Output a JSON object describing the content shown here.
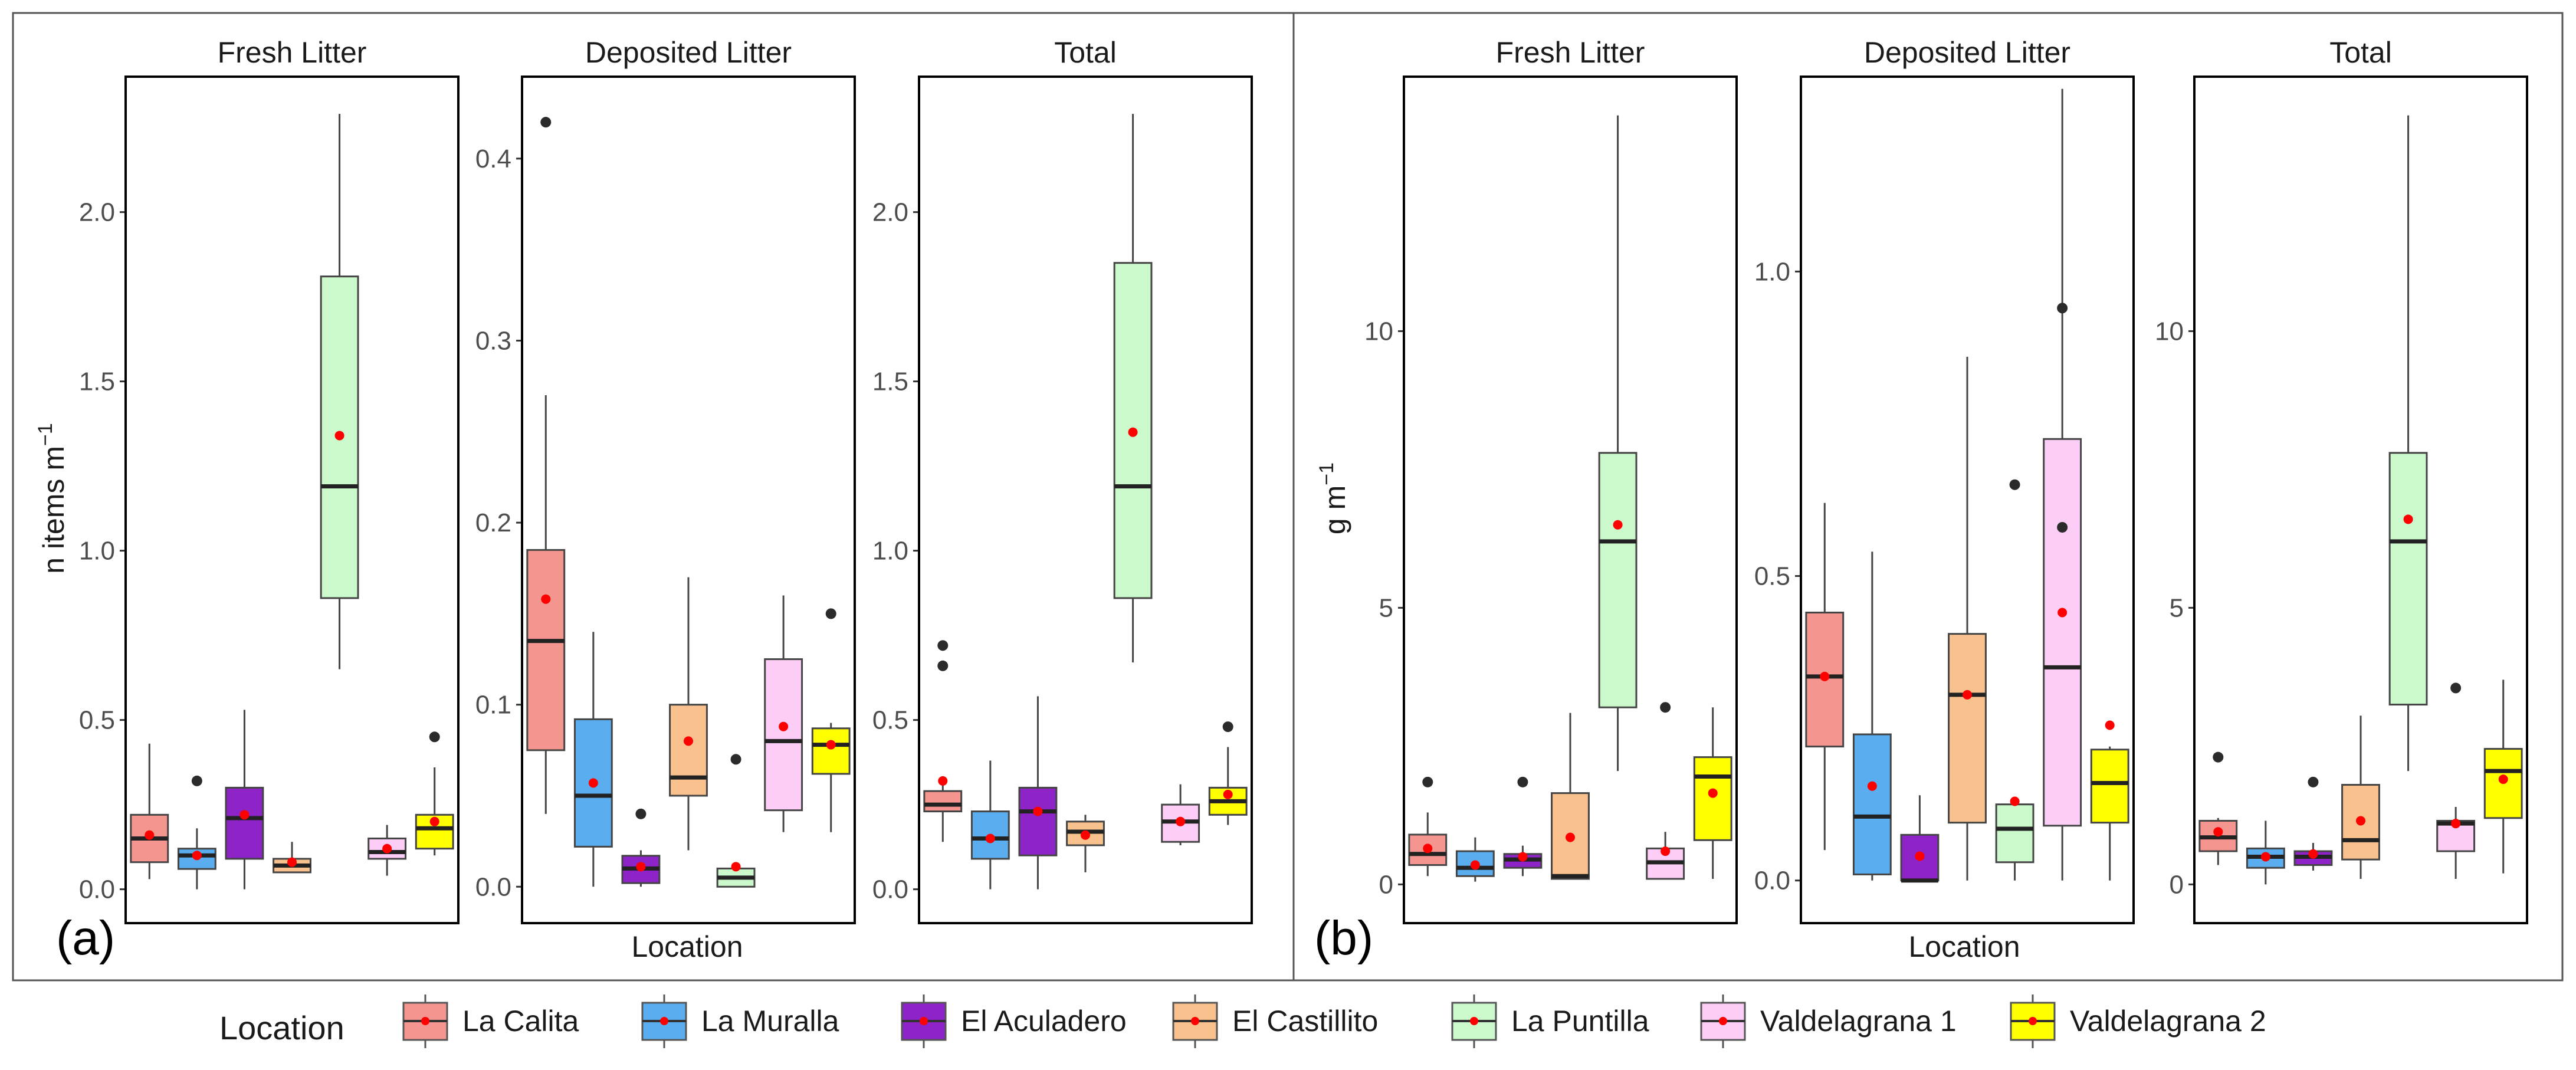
{
  "figures": [
    {
      "label": "(a)",
      "ylabel": "n items m",
      "ylabel_sup": "−1",
      "xlabel": "Location"
    },
    {
      "label": "(b)",
      "ylabel": "g m",
      "ylabel_sup": "−1",
      "xlabel": "Location"
    }
  ],
  "legend": {
    "title": "Location",
    "items": [
      {
        "label": "La Calita",
        "color": "#F4958F"
      },
      {
        "label": "La Muralla",
        "color": "#5AAEF0"
      },
      {
        "label": "El Aculadero",
        "color": "#8E23C8"
      },
      {
        "label": "El Castillito",
        "color": "#F9C18D"
      },
      {
        "label": "La Puntilla",
        "color": "#CCF9CC"
      },
      {
        "label": "Valdelagrana 1",
        "color": "#FCCDF6"
      },
      {
        "label": "Valdelagrana 2",
        "color": "#FFFF00"
      }
    ]
  },
  "colors": {
    "median": "#222222",
    "whisker": "#444444",
    "mean_point": "#FF0000",
    "outlier": "#2b2b2b",
    "panel_border": "#000000",
    "outer_frame": "#555555"
  },
  "chart_data": [
    {
      "type": "boxplot",
      "figure": 0,
      "title": "Fresh Litter",
      "ylim": [
        -0.1,
        2.4
      ],
      "yticks": [
        0.0,
        0.5,
        1.0,
        1.5,
        2.0
      ],
      "ytick_labels": [
        "0.0",
        "0.5",
        "1.0",
        "1.5",
        "2.0"
      ],
      "categories": [
        "La Calita",
        "La Muralla",
        "El Aculadero",
        "El Castillito",
        "La Puntilla",
        "Valdelagrana 1",
        "Valdelagrana 2"
      ],
      "boxes": [
        {
          "min": 0.03,
          "q1": 0.08,
          "median": 0.15,
          "q3": 0.22,
          "max": 0.43,
          "mean": 0.16,
          "outliers": []
        },
        {
          "min": 0.0,
          "q1": 0.06,
          "median": 0.1,
          "q3": 0.12,
          "max": 0.18,
          "mean": 0.1,
          "outliers": [
            0.32
          ]
        },
        {
          "min": 0.0,
          "q1": 0.09,
          "median": 0.21,
          "q3": 0.3,
          "max": 0.53,
          "mean": 0.22,
          "outliers": []
        },
        {
          "min": 0.05,
          "q1": 0.05,
          "median": 0.07,
          "q3": 0.09,
          "max": 0.14,
          "mean": 0.08,
          "outliers": []
        },
        {
          "min": 0.65,
          "q1": 0.86,
          "median": 1.19,
          "q3": 1.81,
          "max": 2.29,
          "mean": 1.34,
          "outliers": []
        },
        {
          "min": 0.04,
          "q1": 0.09,
          "median": 0.11,
          "q3": 0.15,
          "max": 0.19,
          "mean": 0.12,
          "outliers": []
        },
        {
          "min": 0.1,
          "q1": 0.12,
          "median": 0.18,
          "q3": 0.22,
          "max": 0.36,
          "mean": 0.2,
          "outliers": [
            0.45
          ]
        }
      ]
    },
    {
      "type": "boxplot",
      "figure": 0,
      "title": "Deposited Litter",
      "ylim": [
        -0.02,
        0.445
      ],
      "yticks": [
        0.0,
        0.1,
        0.2,
        0.3,
        0.4
      ],
      "ytick_labels": [
        "0.0",
        "0.1",
        "0.2",
        "0.3",
        "0.4"
      ],
      "categories": [
        "La Calita",
        "La Muralla",
        "El Aculadero",
        "El Castillito",
        "La Puntilla",
        "Valdelagrana 1",
        "Valdelagrana 2"
      ],
      "boxes": [
        {
          "min": 0.04,
          "q1": 0.075,
          "median": 0.135,
          "q3": 0.185,
          "max": 0.27,
          "mean": 0.158,
          "outliers": [
            0.42
          ]
        },
        {
          "min": 0.0,
          "q1": 0.022,
          "median": 0.05,
          "q3": 0.092,
          "max": 0.14,
          "mean": 0.057,
          "outliers": []
        },
        {
          "min": 0.0,
          "q1": 0.002,
          "median": 0.01,
          "q3": 0.017,
          "max": 0.02,
          "mean": 0.011,
          "outliers": [
            0.04
          ]
        },
        {
          "min": 0.02,
          "q1": 0.05,
          "median": 0.06,
          "q3": 0.1,
          "max": 0.17,
          "mean": 0.08,
          "outliers": []
        },
        {
          "min": 0.0,
          "q1": 0.0,
          "median": 0.005,
          "q3": 0.01,
          "max": 0.01,
          "mean": 0.011,
          "outliers": [
            0.07
          ]
        },
        {
          "min": 0.03,
          "q1": 0.042,
          "median": 0.08,
          "q3": 0.125,
          "max": 0.16,
          "mean": 0.088,
          "outliers": []
        },
        {
          "min": 0.03,
          "q1": 0.062,
          "median": 0.078,
          "q3": 0.087,
          "max": 0.09,
          "mean": 0.078,
          "outliers": [
            0.15
          ]
        }
      ]
    },
    {
      "type": "boxplot",
      "figure": 0,
      "title": "Total",
      "ylim": [
        -0.1,
        2.4
      ],
      "yticks": [
        0.0,
        0.5,
        1.0,
        1.5,
        2.0
      ],
      "ytick_labels": [
        "0.0",
        "0.5",
        "1.0",
        "1.5",
        "2.0"
      ],
      "categories": [
        "La Calita",
        "La Muralla",
        "El Aculadero",
        "El Castillito",
        "La Puntilla",
        "Valdelagrana 1",
        "Valdelagrana 2"
      ],
      "boxes": [
        {
          "min": 0.14,
          "q1": 0.23,
          "median": 0.25,
          "q3": 0.29,
          "max": 0.31,
          "mean": 0.32,
          "outliers": [
            0.66,
            0.72
          ]
        },
        {
          "min": 0.0,
          "q1": 0.09,
          "median": 0.15,
          "q3": 0.23,
          "max": 0.38,
          "mean": 0.15,
          "outliers": []
        },
        {
          "min": 0.0,
          "q1": 0.1,
          "median": 0.23,
          "q3": 0.3,
          "max": 0.57,
          "mean": 0.23,
          "outliers": []
        },
        {
          "min": 0.05,
          "q1": 0.13,
          "median": 0.17,
          "q3": 0.2,
          "max": 0.22,
          "mean": 0.16,
          "outliers": []
        },
        {
          "min": 0.67,
          "q1": 0.86,
          "median": 1.19,
          "q3": 1.85,
          "max": 2.29,
          "mean": 1.35,
          "outliers": []
        },
        {
          "min": 0.13,
          "q1": 0.14,
          "median": 0.2,
          "q3": 0.25,
          "max": 0.31,
          "mean": 0.2,
          "outliers": []
        },
        {
          "min": 0.19,
          "q1": 0.22,
          "median": 0.26,
          "q3": 0.3,
          "max": 0.42,
          "mean": 0.28,
          "outliers": [
            0.48
          ]
        }
      ]
    },
    {
      "type": "boxplot",
      "figure": 1,
      "title": "Fresh Litter",
      "ylim": [
        -0.7,
        14.6
      ],
      "yticks": [
        0,
        5,
        10
      ],
      "ytick_labels": [
        "0",
        "5",
        "10"
      ],
      "categories": [
        "La Calita",
        "La Muralla",
        "El Aculadero",
        "El Castillito",
        "La Puntilla",
        "Valdelagrana 1",
        "Valdelagrana 2"
      ],
      "boxes": [
        {
          "min": 0.15,
          "q1": 0.35,
          "median": 0.55,
          "q3": 0.9,
          "max": 1.3,
          "mean": 0.65,
          "outliers": [
            1.85
          ]
        },
        {
          "min": 0.05,
          "q1": 0.15,
          "median": 0.3,
          "q3": 0.6,
          "max": 0.85,
          "mean": 0.35,
          "outliers": []
        },
        {
          "min": 0.15,
          "q1": 0.3,
          "median": 0.45,
          "q3": 0.55,
          "max": 0.7,
          "mean": 0.5,
          "outliers": [
            1.85
          ]
        },
        {
          "min": 0.1,
          "q1": 0.1,
          "median": 0.15,
          "q3": 1.65,
          "max": 3.1,
          "mean": 0.85,
          "outliers": []
        },
        {
          "min": 2.05,
          "q1": 3.2,
          "median": 6.2,
          "q3": 7.8,
          "max": 13.9,
          "mean": 6.5,
          "outliers": []
        },
        {
          "min": 0.1,
          "q1": 0.1,
          "median": 0.4,
          "q3": 0.65,
          "max": 0.95,
          "mean": 0.6,
          "outliers": [
            3.2
          ]
        },
        {
          "min": 0.1,
          "q1": 0.8,
          "median": 1.95,
          "q3": 2.3,
          "max": 3.2,
          "mean": 1.65,
          "outliers": []
        }
      ]
    },
    {
      "type": "boxplot",
      "figure": 1,
      "title": "Deposited Litter",
      "ylim": [
        -0.07,
        1.32
      ],
      "yticks": [
        0.0,
        0.5,
        1.0
      ],
      "ytick_labels": [
        "0.0",
        "0.5",
        "1.0"
      ],
      "categories": [
        "La Calita",
        "La Muralla",
        "El Aculadero",
        "El Castillito",
        "La Puntilla",
        "Valdelagrana 1",
        "Valdelagrana 2"
      ],
      "boxes": [
        {
          "min": 0.05,
          "q1": 0.22,
          "median": 0.335,
          "q3": 0.44,
          "max": 0.62,
          "mean": 0.335,
          "outliers": []
        },
        {
          "min": 0.0,
          "q1": 0.01,
          "median": 0.105,
          "q3": 0.24,
          "max": 0.54,
          "mean": 0.155,
          "outliers": []
        },
        {
          "min": 0.0,
          "q1": 0.0,
          "median": 0.0,
          "q3": 0.075,
          "max": 0.14,
          "mean": 0.04,
          "outliers": []
        },
        {
          "min": 0.0,
          "q1": 0.095,
          "median": 0.305,
          "q3": 0.405,
          "max": 0.86,
          "mean": 0.305,
          "outliers": []
        },
        {
          "min": 0.0,
          "q1": 0.03,
          "median": 0.085,
          "q3": 0.125,
          "max": 0.13,
          "mean": 0.13,
          "outliers": [
            0.65
          ]
        },
        {
          "min": 0.0,
          "q1": 0.09,
          "median": 0.35,
          "q3": 0.725,
          "max": 1.3,
          "mean": 0.44,
          "outliers": [
            0.58,
            0.94
          ]
        },
        {
          "min": 0.0,
          "q1": 0.095,
          "median": 0.16,
          "q3": 0.215,
          "max": 0.22,
          "mean": 0.255,
          "outliers": []
        }
      ]
    },
    {
      "type": "boxplot",
      "figure": 1,
      "title": "Total",
      "ylim": [
        -0.7,
        14.6
      ],
      "yticks": [
        0,
        5,
        10
      ],
      "ytick_labels": [
        "0",
        "5",
        "10"
      ],
      "categories": [
        "La Calita",
        "La Muralla",
        "El Aculadero",
        "El Castillito",
        "La Puntilla",
        "Valdelagrana 1",
        "Valdelagrana 2"
      ],
      "boxes": [
        {
          "min": 0.35,
          "q1": 0.6,
          "median": 0.85,
          "q3": 1.15,
          "max": 1.2,
          "mean": 0.95,
          "outliers": [
            2.3
          ]
        },
        {
          "min": 0.0,
          "q1": 0.3,
          "median": 0.5,
          "q3": 0.65,
          "max": 1.15,
          "mean": 0.5,
          "outliers": []
        },
        {
          "min": 0.25,
          "q1": 0.35,
          "median": 0.5,
          "q3": 0.6,
          "max": 0.75,
          "mean": 0.55,
          "outliers": [
            1.85
          ]
        },
        {
          "min": 0.1,
          "q1": 0.45,
          "median": 0.8,
          "q3": 1.8,
          "max": 3.05,
          "mean": 1.15,
          "outliers": []
        },
        {
          "min": 2.05,
          "q1": 3.25,
          "median": 6.2,
          "q3": 7.8,
          "max": 13.9,
          "mean": 6.6,
          "outliers": []
        },
        {
          "min": 0.1,
          "q1": 0.6,
          "median": 1.1,
          "q3": 1.15,
          "max": 1.4,
          "mean": 1.1,
          "outliers": [
            3.55
          ]
        },
        {
          "min": 0.2,
          "q1": 1.2,
          "median": 2.05,
          "q3": 2.45,
          "max": 3.7,
          "mean": 1.9,
          "outliers": []
        }
      ]
    }
  ]
}
